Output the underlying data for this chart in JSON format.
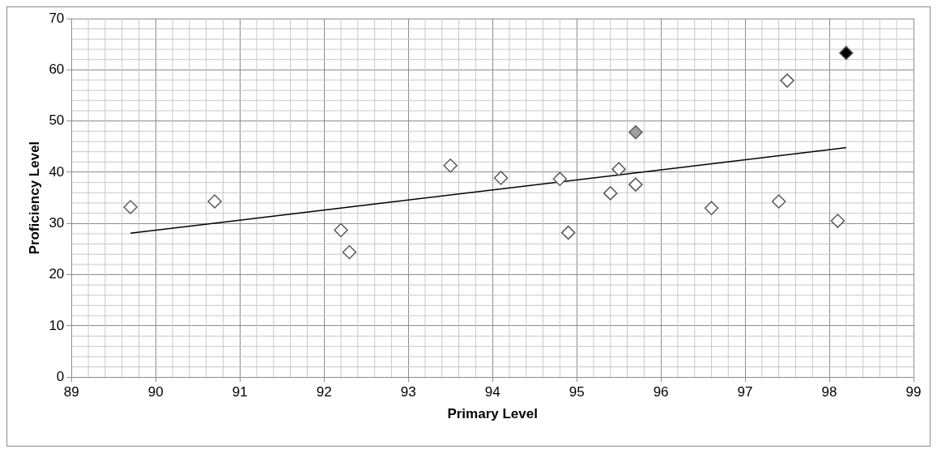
{
  "chart_data": {
    "type": "scatter",
    "xlabel": "Primary Level",
    "ylabel": "Proficiency Level",
    "xlim": [
      89,
      99
    ],
    "xticks": [
      89,
      90,
      91,
      92,
      93,
      94,
      95,
      96,
      97,
      98,
      99
    ],
    "ylim": [
      0,
      70
    ],
    "yticks": [
      0,
      10,
      20,
      30,
      40,
      50,
      60,
      70
    ],
    "grid": true,
    "legend": false,
    "marker": "diamond",
    "series": [
      {
        "color": "#ffffff",
        "x": [
          89.7,
          90.7,
          92.2,
          92.3,
          93.5,
          94.1,
          94.8,
          94.9,
          95.4,
          95.5,
          95.7,
          96.6,
          97.4,
          97.5,
          98.1
        ],
        "values": [
          33.2,
          34.3,
          28.7,
          24.4,
          41.3,
          38.9,
          38.7,
          28.2,
          35.9,
          40.6,
          37.6,
          33.0,
          34.3,
          57.9,
          30.5
        ]
      },
      {
        "color": "#a0a0a0",
        "x": [
          95.7
        ],
        "values": [
          47.8
        ]
      },
      {
        "color": "#000000",
        "x": [
          98.2
        ],
        "values": [
          63.3
        ]
      },
      {
        "type": "line",
        "color": "#000000",
        "x": [
          89.7,
          98.2
        ],
        "values": [
          28.1,
          44.8
        ],
        "marker": "none",
        "line_style": "solid"
      }
    ]
  }
}
